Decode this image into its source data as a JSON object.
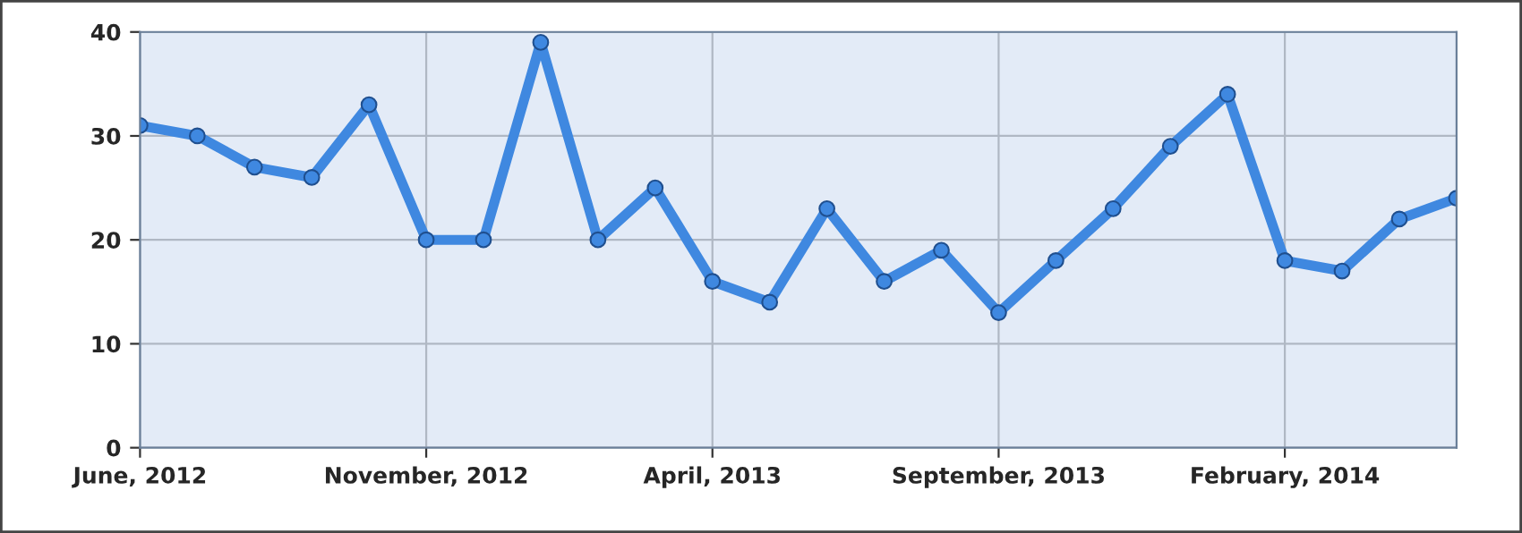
{
  "chart_data": {
    "type": "line",
    "categories": [
      "June, 2012",
      null,
      null,
      null,
      null,
      "November, 2012",
      null,
      null,
      null,
      null,
      "April, 2013",
      null,
      null,
      null,
      null,
      "September, 2013",
      null,
      null,
      null,
      null,
      "February, 2014",
      null,
      null,
      null
    ],
    "series": [
      {
        "color": "#3f88e0",
        "values": [
          31,
          30,
          27,
          26,
          33,
          20,
          20,
          39,
          20,
          25,
          16,
          14,
          23,
          16,
          19,
          13,
          18,
          23,
          29,
          34,
          18,
          17,
          22,
          24
        ]
      }
    ],
    "ylim": [
      0,
      40
    ],
    "yticks": [
      0,
      10,
      20,
      30,
      40
    ],
    "grid": true,
    "marker": "circle",
    "line_style": "solid",
    "legend": false
  }
}
